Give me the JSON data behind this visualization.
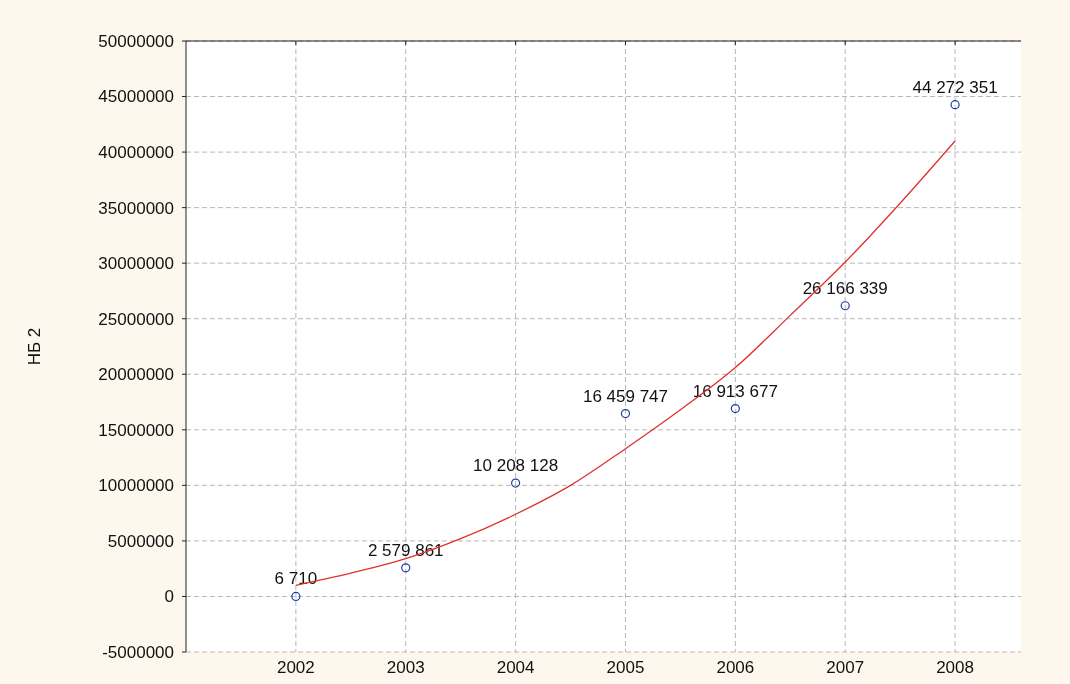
{
  "chart_data": {
    "type": "scatter",
    "ylabel": "НБ 2",
    "x": [
      2002,
      2003,
      2004,
      2005,
      2006,
      2007,
      2008
    ],
    "xlim": [
      2001,
      2008.6
    ],
    "xticks": [
      2002,
      2003,
      2004,
      2005,
      2006,
      2007,
      2008
    ],
    "ylim": [
      -5000000,
      50000000
    ],
    "yticks": [
      -5000000,
      0,
      5000000,
      10000000,
      15000000,
      20000000,
      25000000,
      30000000,
      35000000,
      40000000,
      45000000,
      50000000
    ],
    "grid": true,
    "series": [
      {
        "marker": "circle",
        "color": "#1f3fa0",
        "values": [
          6710,
          2579861,
          10208128,
          16459747,
          16913677,
          26166339,
          44272351
        ],
        "value_labels": [
          "6 710",
          "2 579 861",
          "10 208 128",
          "16 459 747",
          "16 913 677",
          "26 166 339",
          "44 272 351"
        ]
      },
      {
        "type": "line",
        "color": "#e03030",
        "x": [
          2002,
          2002.5,
          2003,
          2003.5,
          2004,
          2004.5,
          2005,
          2005.5,
          2006,
          2006.5,
          2007,
          2007.5,
          2008
        ],
        "values": [
          1000000,
          2100000,
          3400000,
          5200000,
          7400000,
          10000000,
          13300000,
          16800000,
          20600000,
          25300000,
          30100000,
          35400000,
          41000000
        ]
      }
    ]
  }
}
